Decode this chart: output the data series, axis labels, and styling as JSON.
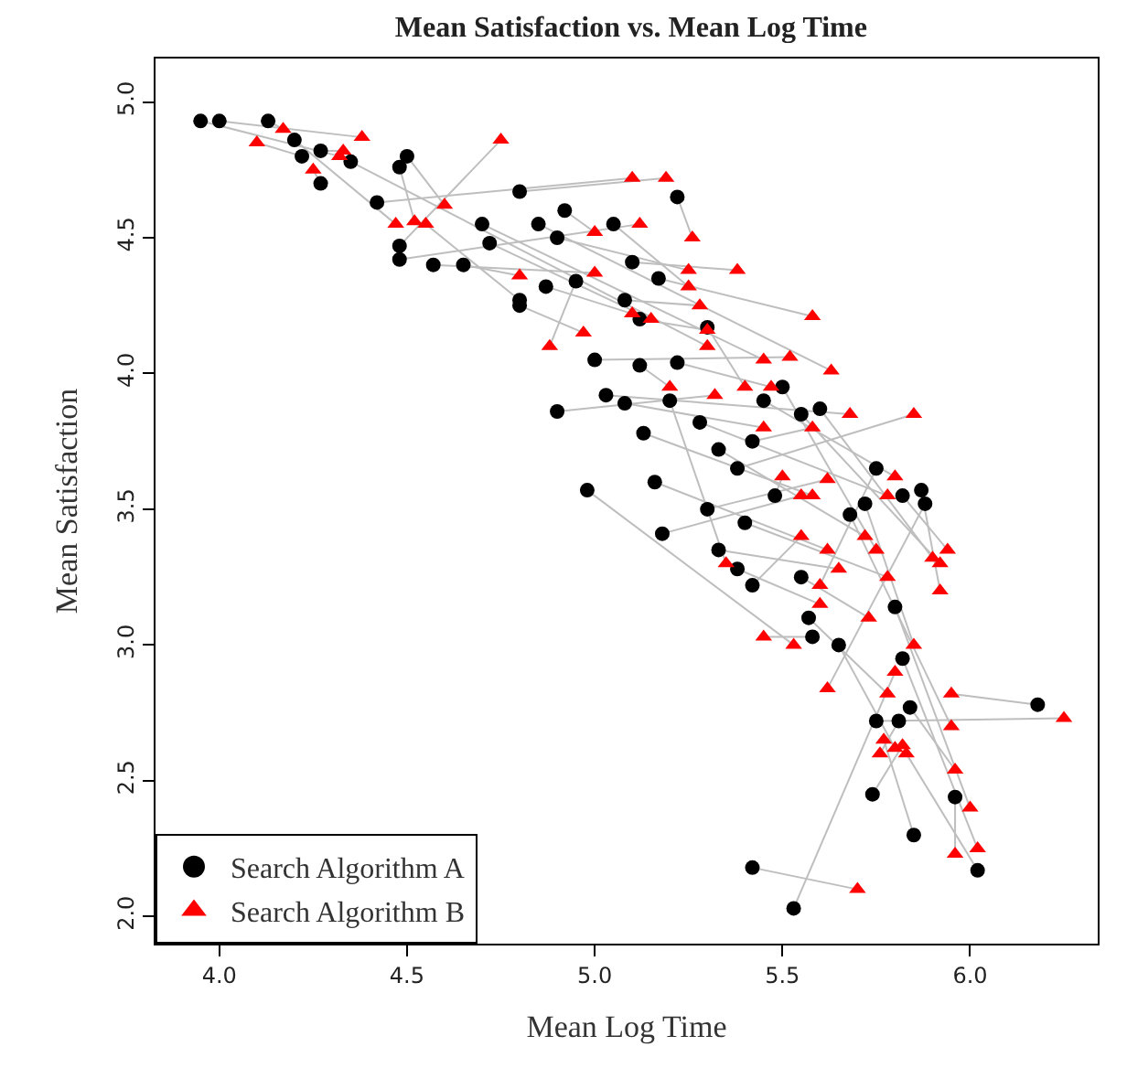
{
  "chart_data": {
    "type": "scatter",
    "title": "Mean Satisfaction vs. Mean Log Time",
    "xlabel": "Mean Log Time",
    "ylabel": "Mean Satisfaction",
    "xlim": [
      3.83,
      6.34
    ],
    "ylim": [
      1.9,
      5.16
    ],
    "xticks": [
      {
        "value": 4,
        "label": "4.0"
      },
      {
        "value": 4.5,
        "label": "4.5"
      },
      {
        "value": 5,
        "label": "5.0"
      },
      {
        "value": 5.5,
        "label": "5.5"
      },
      {
        "value": 6,
        "label": "6.0"
      }
    ],
    "yticks": [
      {
        "value": 2,
        "label": "2.0"
      },
      {
        "value": 2.5,
        "label": "2.5"
      },
      {
        "value": 3,
        "label": "3.0"
      },
      {
        "value": 3.5,
        "label": "3.5"
      },
      {
        "value": 4,
        "label": "4.0"
      },
      {
        "value": 4.5,
        "label": "4.5"
      },
      {
        "value": 5,
        "label": "5.0"
      }
    ],
    "legend": "bottom left",
    "series": [
      {
        "type": "line",
        "color": "#bebebe",
        "marker": "none",
        "x": [
          3.95,
          4.32,
          null,
          4.0,
          4.38,
          null,
          4.13,
          4.17,
          null,
          4.2,
          4.47,
          null,
          4.22,
          4.1,
          null,
          4.27,
          4.25,
          null,
          4.27,
          4.33,
          null,
          4.35,
          5.3,
          null,
          4.5,
          4.6,
          null,
          4.48,
          4.52,
          null,
          4.42,
          5.1,
          null,
          4.48,
          4.75,
          null,
          4.48,
          5.12,
          null,
          4.57,
          5.0,
          null,
          4.65,
          4.8,
          null,
          4.7,
          5.45,
          null,
          4.72,
          5.15,
          null,
          4.8,
          5.19,
          null,
          4.8,
          4.55,
          null,
          4.8,
          4.97,
          null,
          4.85,
          5.63,
          null,
          4.87,
          5.1,
          null,
          4.9,
          5.25,
          null,
          4.95,
          4.88,
          null,
          4.92,
          5.0,
          null,
          5.05,
          5.25,
          null,
          5.1,
          5.38,
          null,
          5.22,
          5.26,
          null,
          5.08,
          5.28,
          null,
          5.12,
          5.3,
          null,
          5.17,
          5.58,
          null,
          5.0,
          5.52,
          null,
          5.03,
          5.68,
          null,
          5.12,
          5.2,
          null,
          5.22,
          5.47,
          null,
          4.9,
          5.32,
          null,
          5.08,
          5.45,
          null,
          5.3,
          5.4,
          null,
          5.2,
          5.35,
          null,
          5.13,
          5.58,
          null,
          4.98,
          5.53,
          null,
          5.16,
          5.62,
          null,
          5.18,
          5.55,
          null,
          5.28,
          5.78,
          null,
          5.33,
          5.72,
          null,
          5.38,
          5.85,
          null,
          5.42,
          5.58,
          null,
          5.45,
          5.8,
          null,
          5.5,
          5.75,
          null,
          5.55,
          5.92,
          null,
          5.6,
          5.9,
          null,
          5.3,
          5.62,
          null,
          5.33,
          5.65,
          null,
          5.38,
          5.6,
          null,
          5.4,
          5.78,
          null,
          5.42,
          5.55,
          null,
          5.48,
          5.5,
          null,
          5.55,
          5.73,
          null,
          5.57,
          5.78,
          null,
          5.58,
          5.45,
          null,
          5.65,
          5.8,
          null,
          5.68,
          5.95,
          null,
          5.72,
          5.85,
          null,
          5.75,
          5.6,
          null,
          5.82,
          5.94,
          null,
          5.87,
          5.92,
          null,
          5.88,
          5.62,
          null,
          5.8,
          6.0,
          null,
          5.82,
          6.02,
          null,
          5.81,
          5.76,
          null,
          5.84,
          5.96,
          null,
          5.75,
          6.25,
          null,
          5.74,
          5.82,
          null,
          5.96,
          5.96,
          null,
          6.18,
          5.95,
          null,
          5.85,
          5.77,
          null,
          6.02,
          5.83,
          null,
          5.42,
          5.7,
          null,
          5.53,
          5.8
        ],
        "values": [
          4.93,
          4.8,
          null,
          4.93,
          4.87,
          null,
          4.93,
          4.9,
          null,
          4.86,
          4.55,
          null,
          4.8,
          4.85,
          null,
          4.7,
          4.75,
          null,
          4.82,
          4.82,
          null,
          4.78,
          4.1,
          null,
          4.8,
          4.62,
          null,
          4.76,
          4.56,
          null,
          4.63,
          4.72,
          null,
          4.47,
          4.86,
          null,
          4.42,
          4.55,
          null,
          4.4,
          4.37,
          null,
          4.4,
          4.36,
          null,
          4.55,
          4.05,
          null,
          4.48,
          4.2,
          null,
          4.67,
          4.72,
          null,
          4.27,
          4.55,
          null,
          4.25,
          4.15,
          null,
          4.55,
          4.01,
          null,
          4.32,
          4.22,
          null,
          4.5,
          4.38,
          null,
          4.34,
          4.1,
          null,
          4.6,
          4.52,
          null,
          4.55,
          4.32,
          null,
          4.41,
          4.38,
          null,
          4.65,
          4.5,
          null,
          4.27,
          4.25,
          null,
          4.2,
          4.16,
          null,
          4.35,
          4.21,
          null,
          4.05,
          4.06,
          null,
          3.92,
          3.85,
          null,
          4.03,
          3.95,
          null,
          4.04,
          3.95,
          null,
          3.86,
          3.92,
          null,
          3.89,
          3.8,
          null,
          4.17,
          3.95,
          null,
          3.9,
          3.3,
          null,
          3.78,
          3.55,
          null,
          3.57,
          3.0,
          null,
          3.6,
          3.35,
          null,
          3.41,
          3.55,
          null,
          3.82,
          3.55,
          null,
          3.72,
          3.4,
          null,
          3.65,
          3.85,
          null,
          3.75,
          3.8,
          null,
          3.9,
          3.62,
          null,
          3.95,
          3.35,
          null,
          3.85,
          3.3,
          null,
          3.87,
          3.32,
          null,
          3.5,
          3.61,
          null,
          3.35,
          3.28,
          null,
          3.28,
          3.15,
          null,
          3.45,
          3.25,
          null,
          3.22,
          3.4,
          null,
          3.55,
          3.62,
          null,
          3.25,
          3.1,
          null,
          3.1,
          2.82,
          null,
          3.03,
          3.03,
          null,
          3.0,
          2.62,
          null,
          3.48,
          2.7,
          null,
          3.52,
          3.0,
          null,
          3.65,
          3.22,
          null,
          3.55,
          3.35,
          null,
          3.57,
          3.2,
          null,
          3.52,
          2.84,
          null,
          3.14,
          2.4,
          null,
          2.95,
          2.25,
          null,
          2.72,
          2.6,
          null,
          2.77,
          2.54,
          null,
          2.72,
          2.73,
          null,
          2.45,
          2.63,
          null,
          2.44,
          2.23,
          null,
          2.78,
          2.82,
          null,
          2.3,
          2.65,
          null,
          2.17,
          2.6,
          null,
          2.18,
          2.1,
          null,
          2.03,
          2.9
        ]
      },
      {
        "name": "Search Algorithm A",
        "color": "#000000",
        "marker": "circle",
        "x": [
          3.95,
          4.0,
          4.13,
          4.2,
          4.22,
          4.27,
          4.27,
          4.35,
          4.5,
          4.48,
          4.42,
          4.48,
          4.48,
          4.57,
          4.65,
          4.7,
          4.72,
          4.8,
          4.8,
          4.8,
          4.85,
          4.87,
          4.9,
          4.95,
          4.92,
          5.05,
          5.1,
          5.22,
          5.08,
          5.12,
          5.17,
          5.0,
          5.03,
          5.12,
          5.22,
          4.9,
          5.08,
          5.3,
          5.2,
          5.13,
          4.98,
          5.16,
          5.18,
          5.28,
          5.33,
          5.38,
          5.42,
          5.45,
          5.5,
          5.55,
          5.6,
          5.3,
          5.33,
          5.38,
          5.4,
          5.42,
          5.48,
          5.55,
          5.57,
          5.58,
          5.65,
          5.68,
          5.72,
          5.75,
          5.82,
          5.87,
          5.88,
          5.8,
          5.82,
          5.81,
          5.84,
          5.75,
          5.74,
          5.96,
          6.18,
          5.85,
          6.02,
          5.42,
          5.53
        ],
        "values": [
          4.93,
          4.93,
          4.93,
          4.86,
          4.8,
          4.7,
          4.82,
          4.78,
          4.8,
          4.76,
          4.63,
          4.47,
          4.42,
          4.4,
          4.4,
          4.55,
          4.48,
          4.67,
          4.27,
          4.25,
          4.55,
          4.32,
          4.5,
          4.34,
          4.6,
          4.55,
          4.41,
          4.65,
          4.27,
          4.2,
          4.35,
          4.05,
          3.92,
          4.03,
          4.04,
          3.86,
          3.89,
          4.17,
          3.9,
          3.78,
          3.57,
          3.6,
          3.41,
          3.82,
          3.72,
          3.65,
          3.75,
          3.9,
          3.95,
          3.85,
          3.87,
          3.5,
          3.35,
          3.28,
          3.45,
          3.22,
          3.55,
          3.25,
          3.1,
          3.03,
          3.0,
          3.48,
          3.52,
          3.65,
          3.55,
          3.57,
          3.52,
          3.14,
          2.95,
          2.72,
          2.77,
          2.72,
          2.45,
          2.44,
          2.78,
          2.3,
          2.17,
          2.18,
          2.03
        ]
      },
      {
        "name": "Search Algorithm B",
        "color": "#ff0000",
        "marker": "triangle",
        "x": [
          4.32,
          4.38,
          4.17,
          4.47,
          4.1,
          4.25,
          4.33,
          5.3,
          4.6,
          4.52,
          5.1,
          4.75,
          5.12,
          5.0,
          4.8,
          5.45,
          5.15,
          5.19,
          4.55,
          4.97,
          5.63,
          5.1,
          5.25,
          4.88,
          5.0,
          5.25,
          5.38,
          5.26,
          5.28,
          5.3,
          5.58,
          5.52,
          5.68,
          5.2,
          5.47,
          5.32,
          5.45,
          5.4,
          5.35,
          5.58,
          5.53,
          5.62,
          5.55,
          5.78,
          5.72,
          5.85,
          5.58,
          5.8,
          5.75,
          5.92,
          5.9,
          5.62,
          5.65,
          5.6,
          5.78,
          5.55,
          5.5,
          5.73,
          5.78,
          5.45,
          5.8,
          5.95,
          5.85,
          5.6,
          5.94,
          5.92,
          5.62,
          6.0,
          6.02,
          5.76,
          5.96,
          6.25,
          5.82,
          5.96,
          5.95,
          5.77,
          5.83,
          5.7,
          5.8
        ],
        "values": [
          4.8,
          4.87,
          4.9,
          4.55,
          4.85,
          4.75,
          4.82,
          4.1,
          4.62,
          4.56,
          4.72,
          4.86,
          4.55,
          4.37,
          4.36,
          4.05,
          4.2,
          4.72,
          4.55,
          4.15,
          4.01,
          4.22,
          4.38,
          4.1,
          4.52,
          4.32,
          4.38,
          4.5,
          4.25,
          4.16,
          4.21,
          4.06,
          3.85,
          3.95,
          3.95,
          3.92,
          3.8,
          3.95,
          3.3,
          3.55,
          3.0,
          3.35,
          3.55,
          3.55,
          3.4,
          3.85,
          3.8,
          3.62,
          3.35,
          3.3,
          3.32,
          3.61,
          3.28,
          3.15,
          3.25,
          3.4,
          3.62,
          3.1,
          2.82,
          3.03,
          2.62,
          2.7,
          3.0,
          3.22,
          3.35,
          3.2,
          2.84,
          2.4,
          2.25,
          2.6,
          2.54,
          2.73,
          2.63,
          2.23,
          2.82,
          2.65,
          2.6,
          2.1,
          2.9
        ]
      }
    ]
  }
}
